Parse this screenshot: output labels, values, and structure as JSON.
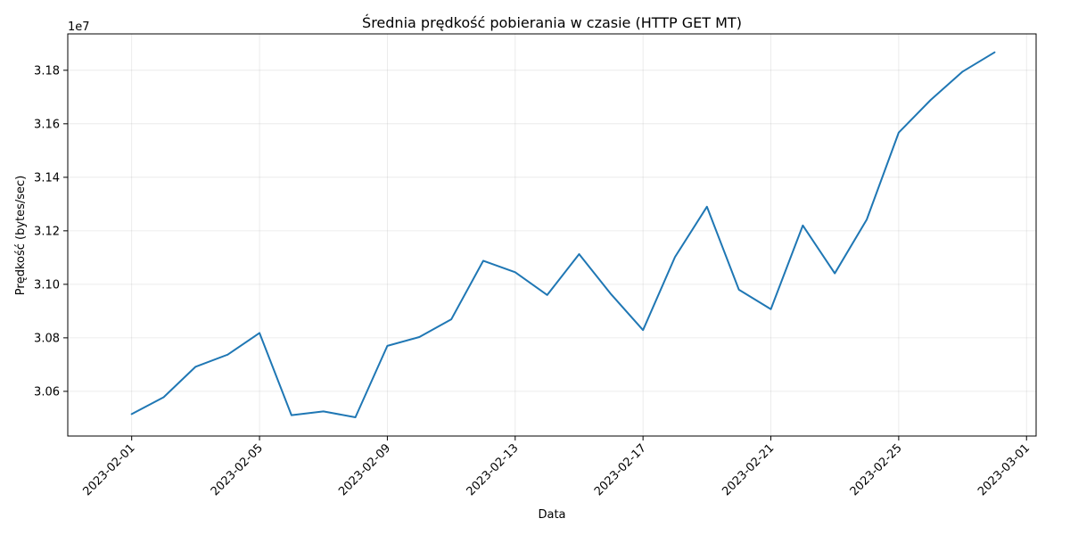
{
  "chart_data": {
    "type": "line",
    "title": "Średnia prędkość pobierania w czasie (HTTP GET MT)",
    "xlabel": "Data",
    "ylabel": "Prędkość (bytes/sec)",
    "y_offset_label": "1e7",
    "y_scale_factor": 10000000,
    "x_ticks": [
      "2023-02-01",
      "2023-02-05",
      "2023-02-09",
      "2023-02-13",
      "2023-02-17",
      "2023-02-21",
      "2023-02-25",
      "2023-03-01"
    ],
    "y_ticks": [
      3.06,
      3.08,
      3.1,
      3.12,
      3.14,
      3.16,
      3.18
    ],
    "x_range": [
      "2023-01-30",
      "2023-03-01"
    ],
    "ylim": [
      30433000,
      31936000
    ],
    "grid": true,
    "x_tick_rotation": 45,
    "series": [
      {
        "color": "#1f77b4",
        "x": [
          "2023-02-01",
          "2023-02-02",
          "2023-02-03",
          "2023-02-04",
          "2023-02-05",
          "2023-02-06",
          "2023-02-07",
          "2023-02-08",
          "2023-02-09",
          "2023-02-10",
          "2023-02-11",
          "2023-02-12",
          "2023-02-13",
          "2023-02-14",
          "2023-02-15",
          "2023-02-16",
          "2023-02-17",
          "2023-02-18",
          "2023-02-19",
          "2023-02-20",
          "2023-02-21",
          "2023-02-22",
          "2023-02-23",
          "2023-02-24",
          "2023-02-25",
          "2023-02-26",
          "2023-02-27",
          "2023-02-28"
        ],
        "values": [
          30515000,
          30578000,
          30692000,
          30737000,
          30818000,
          30511000,
          30525000,
          30503000,
          30770000,
          30803000,
          30869000,
          31088000,
          31045000,
          30960000,
          31113000,
          30963000,
          30829000,
          31102000,
          31290000,
          30980000,
          30907000,
          31220000,
          31041000,
          31242000,
          31567000,
          31689000,
          31795000,
          31867000
        ]
      }
    ]
  }
}
